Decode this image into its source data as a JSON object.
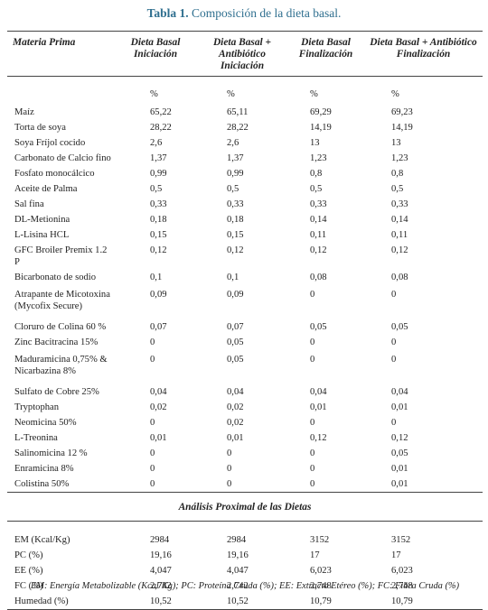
{
  "caption": {
    "label": "Tabla 1.",
    "text": "Composición de la dieta basal."
  },
  "headers": [
    "Materia Prima",
    "Dieta Basal Iniciación",
    "Dieta Basal + Antibiótico Iniciación",
    "Dieta Basal Finalización",
    "Dieta Basal + Antibiótico Finalización"
  ],
  "units": [
    "%",
    "%",
    "%",
    "%"
  ],
  "ingredients": [
    {
      "name": "Maíz",
      "values": [
        "65,22",
        "65,11",
        "69,29",
        "69,23"
      ]
    },
    {
      "name": "Torta de soya",
      "values": [
        "28,22",
        "28,22",
        "14,19",
        "14,19"
      ]
    },
    {
      "name": "Soya Fríjol cocido",
      "values": [
        "2,6",
        "2,6",
        "13",
        "13"
      ]
    },
    {
      "name": "Carbonato de Calcio fino",
      "values": [
        "1,37",
        "1,37",
        "1,23",
        "1,23"
      ]
    },
    {
      "name": "Fosfato monocálcico",
      "values": [
        "0,99",
        "0,99",
        "0,8",
        "0,8"
      ]
    },
    {
      "name": "Aceite de Palma",
      "values": [
        "0,5",
        "0,5",
        "0,5",
        "0,5"
      ]
    },
    {
      "name": "Sal fina",
      "values": [
        "0,33",
        "0,33",
        "0,33",
        "0,33"
      ]
    },
    {
      "name": "DL-Metionina",
      "values": [
        "0,18",
        "0,18",
        "0,14",
        "0,14"
      ]
    },
    {
      "name": "L-Lisina HCL",
      "values": [
        "0,15",
        "0,15",
        "0,11",
        "0,11"
      ]
    },
    {
      "name": "GFC Broiler Premix 1.2 P",
      "values": [
        "0,12",
        "0,12",
        "0,12",
        "0,12"
      ]
    },
    {
      "name": "Bicarbonato de sodio",
      "values": [
        "0,1",
        "0,1",
        "0,08",
        "0,08"
      ]
    },
    {
      "name": "Atrapante de Micotoxina (Mycofix Secure)",
      "values": [
        "0,09",
        "0,09",
        "0",
        "0"
      ]
    },
    {
      "name": "Cloruro de Colina 60 %",
      "values": [
        "0,07",
        "0,07",
        "0,05",
        "0,05"
      ]
    },
    {
      "name": "Zinc Bacitracina 15%",
      "values": [
        "0",
        "0,05",
        "0",
        "0"
      ]
    },
    {
      "name": "Maduramicina 0,75% & Nicarbazina 8%",
      "values": [
        "0",
        "0,05",
        "0",
        "0"
      ]
    },
    {
      "name": "Sulfato de Cobre 25%",
      "values": [
        "0,04",
        "0,04",
        "0,04",
        "0,04"
      ]
    },
    {
      "name": "Tryptophan",
      "values": [
        "0,02",
        "0,02",
        "0,01",
        "0,01"
      ]
    },
    {
      "name": "Neomicina 50%",
      "values": [
        "0",
        "0,02",
        "0",
        "0"
      ]
    },
    {
      "name": "L-Treonina",
      "values": [
        "0,01",
        "0,01",
        "0,12",
        "0,12"
      ]
    },
    {
      "name": "Salinomicina 12 %",
      "values": [
        "0",
        "0",
        "0",
        "0,05"
      ]
    },
    {
      "name": "Enramicina 8%",
      "values": [
        "0",
        "0",
        "0",
        "0,01"
      ]
    },
    {
      "name": "Colistina 50%",
      "values": [
        "0",
        "0",
        "0",
        "0,01"
      ]
    }
  ],
  "proximal_title": "Análisis Proximal de las Dietas",
  "proximal": [
    {
      "name": "EM  (Kcal/Kg)",
      "values": [
        "2984",
        "2984",
        "3152",
        "3152"
      ]
    },
    {
      "name": "PC (%)",
      "values": [
        "19,16",
        "19,16",
        "17",
        "17"
      ]
    },
    {
      "name": "EE (%)",
      "values": [
        "4,047",
        "4,047",
        "6,023",
        "6,023"
      ]
    },
    {
      "name": "FC (%)",
      "values": [
        "2,742",
        "2,742",
        "2,748",
        "2,748"
      ]
    },
    {
      "name": "Humedad (%)",
      "values": [
        "10,52",
        "10,52",
        "10,79",
        "10,79"
      ]
    }
  ],
  "footnote": "EM: Energía Metabolizable (Kcal/Kg); PC: Proteína Cruda (%); EE: Extracto Etéreo (%); FC: Fibra Cruda (%)"
}
